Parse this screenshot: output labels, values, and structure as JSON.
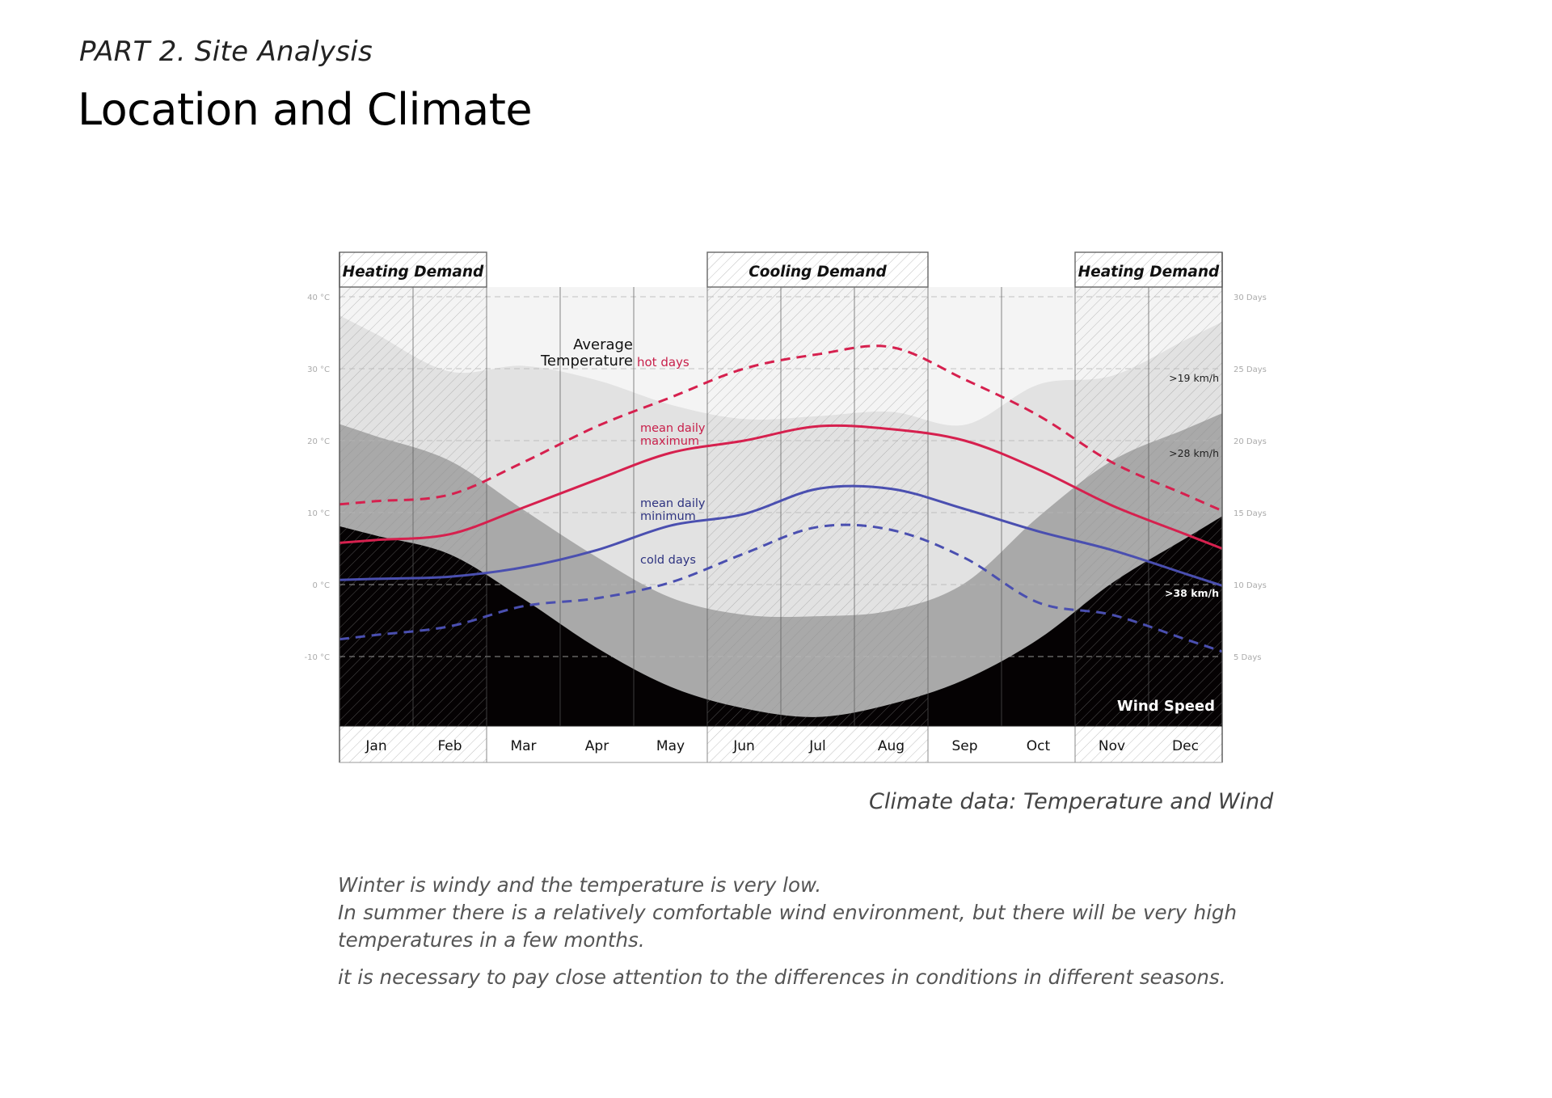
{
  "page": {
    "section": "PART 2. Site Analysis",
    "title": "Location and Climate",
    "caption": "Climate data: Temperature and  Wind",
    "paragraphs": [
      "Winter is windy and the temperature is very low.",
      "In summer there is a relatively comfortable wind environment, but there will be very high temperatures in a few months.",
      "it is necessary to pay close attention to the differences in conditions in different seasons."
    ]
  },
  "chart_data": {
    "type": "line",
    "title": "Average Temperature",
    "categories": [
      "Jan",
      "Feb",
      "Mar",
      "Apr",
      "May",
      "Jun",
      "Jul",
      "Aug",
      "Sep",
      "Oct",
      "Nov",
      "Dec"
    ],
    "y_left": {
      "label": "Temperature",
      "ticks": [
        "40 °C",
        "30 °C",
        "20 °C",
        "10 °C",
        "0 °C",
        "-10 °C"
      ],
      "tick_values": [
        40,
        30,
        20,
        10,
        0,
        -10
      ],
      "range": [
        -19,
        44
      ]
    },
    "y_right": {
      "label": "Days",
      "ticks": [
        "30 Days",
        "25 Days",
        "20 Days",
        "15 Days",
        "10 Days",
        "5 Days"
      ],
      "tick_values": [
        30,
        25,
        20,
        15,
        10,
        5
      ],
      "range": [
        0.5,
        32
      ]
    },
    "grid": true,
    "demand_periods": [
      {
        "label": "Heating Demand",
        "months": [
          "Jan",
          "Feb"
        ]
      },
      {
        "label": "Cooling Demand",
        "months": [
          "Jun",
          "Jul",
          "Aug"
        ]
      },
      {
        "label": "Heating Demand",
        "months": [
          "Nov",
          "Dec"
        ]
      }
    ],
    "temperature_series": [
      {
        "name": "hot days",
        "label": "hot days",
        "style": "dashed",
        "color": "#d6204e",
        "values": [
          11.6,
          12.5,
          17,
          22,
          26,
          30,
          32,
          33,
          28.5,
          23.5,
          17,
          12.5
        ]
      },
      {
        "name": "mean daily maximum",
        "label": "mean daily maximum",
        "style": "solid",
        "color": "#d6204e",
        "values": [
          6.2,
          7,
          10.7,
          14.6,
          18.3,
          20,
          22,
          21.6,
          20,
          16,
          11,
          7
        ]
      },
      {
        "name": "mean daily minimum",
        "label": "mean daily minimum",
        "style": "solid",
        "color": "#4a4fb0",
        "values": [
          0.8,
          1.1,
          2.4,
          4.8,
          8.2,
          9.8,
          13.3,
          13.3,
          10.5,
          7.4,
          4.8,
          1.5
        ]
      },
      {
        "name": "cold days",
        "label": "cold days",
        "style": "dashed",
        "color": "#4a4fb0",
        "values": [
          -7,
          -5.8,
          -3,
          -1.9,
          0.3,
          4.3,
          8,
          7.6,
          3.7,
          -2.5,
          -4.2,
          -7.6
        ]
      }
    ],
    "wind_series_title": "Wind Speed",
    "wind_series": [
      {
        "name": ">19 km/h",
        "label": ">19 km/h",
        "unit": "days",
        "color": "#e2e2e2",
        "values": [
          27.4,
          24.8,
          25.2,
          24.2,
          22.5,
          21.5,
          21.7,
          22,
          21.1,
          23.9,
          24.5,
          27
        ]
      },
      {
        "name": ">28 km/h",
        "label": ">28 km/h",
        "unit": "days",
        "color": "#a9a9a9",
        "values": [
          20.3,
          18.6,
          15.2,
          11.9,
          9.1,
          7.9,
          7.8,
          8.2,
          10.1,
          14.7,
          18.6,
          20.8
        ]
      },
      {
        "name": ">38 km/h",
        "label": ">38 km/h",
        "unit": "days",
        "color": "#050203",
        "values": [
          13.4,
          12.1,
          9,
          5.6,
          2.9,
          1.4,
          0.8,
          1.7,
          3.4,
          6.2,
          10.1,
          13.2
        ]
      }
    ],
    "colors": {
      "background": "#f4f4f4",
      "grid": "#b5b5b5",
      "frame": "#666666",
      "hatch": "#9a9a9a"
    }
  }
}
